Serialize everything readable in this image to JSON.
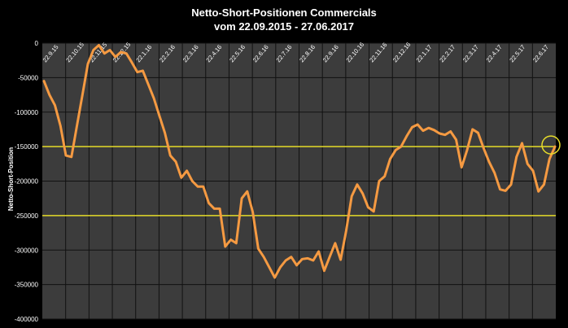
{
  "title": "Netto-Short-Positionen Commercials",
  "subtitle": "vom 22.09.2015  -  27.06.2017",
  "chart_data": {
    "type": "line",
    "ylabel": "Netto-Short-Position",
    "ylim": [
      -400000,
      0
    ],
    "y_ticks": [
      0,
      -50000,
      -100000,
      -150000,
      -200000,
      -250000,
      -300000,
      -350000,
      -400000
    ],
    "y_tick_labels": [
      "0",
      "-50000",
      "-100000",
      "-150000",
      "-200000",
      "-250000",
      "-300000",
      "-350000",
      "-400000"
    ],
    "x_tick_labels": [
      "22.9.15",
      "22.10.15",
      "22.11.15",
      "22.12.15",
      "22.1.16",
      "22.2.16",
      "22.3.16",
      "22.4.16",
      "22.5.16",
      "22.6.16",
      "22.7.16",
      "22.8.16",
      "22.9.16",
      "22.10.16",
      "22.11.16",
      "22.12.16",
      "22.1.17",
      "22.2.17",
      "22.3.17",
      "22.4.17",
      "22.5.17",
      "22.6.17"
    ],
    "grid": true,
    "reference_lines": [
      -150000,
      -250000
    ],
    "highlight_circle_value": -150000,
    "series": [
      {
        "color": "#f59a42",
        "values": [
          -55000,
          -75000,
          -90000,
          -120000,
          -163000,
          -165000,
          -120000,
          -75000,
          -30000,
          -10000,
          -3000,
          -15000,
          -10000,
          -20000,
          -13000,
          -15000,
          -28000,
          -42000,
          -40000,
          -60000,
          -80000,
          -105000,
          -130000,
          -163000,
          -172000,
          -195000,
          -185000,
          -200000,
          -208000,
          -208000,
          -232000,
          -240000,
          -240000,
          -295000,
          -285000,
          -290000,
          -225000,
          -215000,
          -245000,
          -298000,
          -310000,
          -325000,
          -340000,
          -325000,
          -315000,
          -310000,
          -322000,
          -313000,
          -312000,
          -315000,
          -302000,
          -330000,
          -310000,
          -290000,
          -314000,
          -272000,
          -222000,
          -205000,
          -218000,
          -238000,
          -244000,
          -200000,
          -193000,
          -168000,
          -155000,
          -150000,
          -135000,
          -122000,
          -118000,
          -127000,
          -123000,
          -126000,
          -131000,
          -133000,
          -128000,
          -140000,
          -180000,
          -155000,
          -125000,
          -130000,
          -152000,
          -172000,
          -188000,
          -212000,
          -214000,
          -205000,
          -165000,
          -145000,
          -175000,
          -185000,
          -215000,
          -205000,
          -168000,
          -150000
        ]
      }
    ],
    "colors": {
      "background": "#3c3c3c",
      "line": "#f59a42",
      "reference": "#e6dc2a",
      "grid": "#111111"
    }
  }
}
